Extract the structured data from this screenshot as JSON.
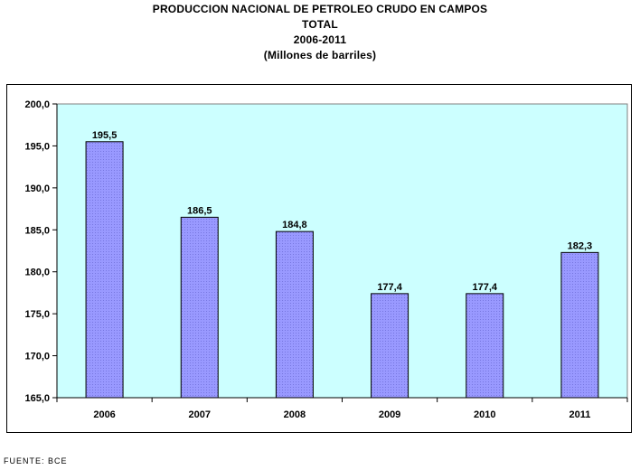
{
  "title_lines": [
    "PRODUCCION NACIONAL DE PETROLEO CRUDO EN CAMPOS",
    "TOTAL",
    "2006-2011",
    "(Millones de barriles)"
  ],
  "source_note": "FUENTE: BCE",
  "colors": {
    "plot_background": "#ccffff",
    "bar_fill": "#9999ff",
    "bar_border": "#000000"
  },
  "chart_data": {
    "type": "bar",
    "categories": [
      "2006",
      "2007",
      "2008",
      "2009",
      "2010",
      "2011"
    ],
    "values": [
      195.5,
      186.5,
      184.8,
      177.4,
      177.4,
      182.3
    ],
    "data_labels": [
      "195,5",
      "186,5",
      "184,8",
      "177,4",
      "177,4",
      "182,3"
    ],
    "ylim": [
      165,
      200
    ],
    "y_ticks": [
      165,
      170,
      175,
      180,
      185,
      190,
      195,
      200
    ],
    "y_tick_labels": [
      "165,0",
      "170,0",
      "175,0",
      "180,0",
      "185,0",
      "190,0",
      "195,0",
      "200,0"
    ],
    "grid": false,
    "legend": "none",
    "xlabel": "",
    "ylabel": ""
  }
}
